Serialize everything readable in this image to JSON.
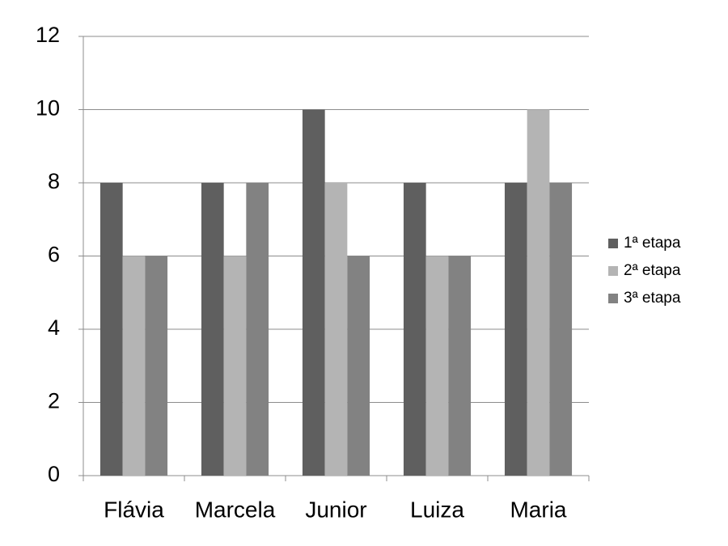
{
  "chart_data": {
    "type": "bar",
    "categories": [
      "Flávia",
      "Marcela",
      "Junior",
      "Luiza",
      "Maria"
    ],
    "series": [
      {
        "name": "1ª etapa",
        "color": "#5f5f5f",
        "values": [
          8,
          8,
          10,
          8,
          8
        ]
      },
      {
        "name": "2ª etapa",
        "color": "#b4b4b4",
        "values": [
          6,
          6,
          8,
          6,
          10
        ]
      },
      {
        "name": "3ª etapa",
        "color": "#828282",
        "values": [
          6,
          8,
          6,
          6,
          8
        ]
      }
    ],
    "ylim": [
      0,
      12
    ],
    "yticks": [
      0,
      2,
      4,
      6,
      8,
      10,
      12
    ],
    "grid": true,
    "legend": "right"
  }
}
